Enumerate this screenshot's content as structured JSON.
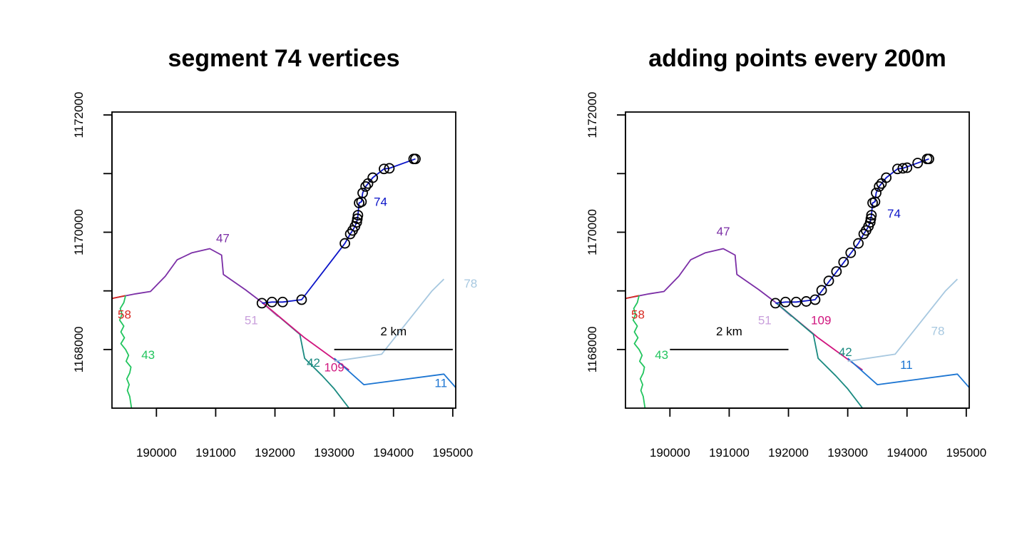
{
  "chart_data": [
    {
      "type": "line",
      "title": "segment 74 vertices",
      "xlabel": "",
      "ylabel": "",
      "xlim": [
        189250,
        195050
      ],
      "ylim": [
        1167000,
        1172050
      ],
      "x_ticks": [
        190000,
        191000,
        192000,
        193000,
        194000,
        195000
      ],
      "x_tick_labels": [
        "190000",
        "191000",
        "192000",
        "193000",
        "194000",
        "195000"
      ],
      "y_ticks": [
        1168000,
        1169000,
        1170000,
        1171000,
        1172000
      ],
      "y_tick_labels": [
        "1168000",
        "",
        "1170000",
        "",
        "1172000"
      ],
      "series": [
        {
          "name": "47",
          "color": "#7b2ea6",
          "label_at": [
            191120,
            1169900
          ],
          "points": [
            [
              189250,
              1168870
            ],
            [
              189650,
              1168950
            ],
            [
              189900,
              1168990
            ],
            [
              190150,
              1169250
            ],
            [
              190350,
              1169530
            ],
            [
              190600,
              1169650
            ],
            [
              190900,
              1169720
            ],
            [
              191100,
              1169610
            ],
            [
              191130,
              1169280
            ],
            [
              191500,
              1169020
            ],
            [
              191800,
              1168790
            ]
          ]
        },
        {
          "name": "58",
          "color": "#d7281f",
          "label_at": [
            189460,
            1168600
          ],
          "points": [
            [
              189250,
              1168870
            ],
            [
              189480,
              1168920
            ]
          ]
        },
        {
          "name": "43",
          "color": "#22c55e",
          "label_at": [
            189860,
            1167910
          ],
          "points": [
            [
              189480,
              1168920
            ],
            [
              189450,
              1168800
            ],
            [
              189390,
              1168700
            ],
            [
              189420,
              1168600
            ],
            [
              189380,
              1168500
            ],
            [
              189450,
              1168400
            ],
            [
              189400,
              1168300
            ],
            [
              189460,
              1168200
            ],
            [
              189400,
              1168100
            ],
            [
              189480,
              1168000
            ],
            [
              189530,
              1167900
            ],
            [
              189490,
              1167800
            ],
            [
              189570,
              1167700
            ],
            [
              189550,
              1167600
            ],
            [
              189500,
              1167500
            ],
            [
              189540,
              1167400
            ],
            [
              189510,
              1167300
            ],
            [
              189550,
              1167200
            ],
            [
              189580,
              1167000
            ]
          ]
        },
        {
          "name": "51",
          "color": "#c9a0dc",
          "label_at": [
            191600,
            1168500
          ],
          "points": [
            [
              191780,
              1168800
            ],
            [
              192050,
              1168560
            ]
          ]
        },
        {
          "name": "42",
          "color": "#1a8a80",
          "label_at": [
            192650,
            1167780
          ],
          "points": [
            [
              191800,
              1168790
            ],
            [
              192300,
              1168360
            ],
            [
              192420,
              1168260
            ],
            [
              192500,
              1167850
            ],
            [
              192800,
              1167550
            ],
            [
              193000,
              1167330
            ],
            [
              193250,
              1167000
            ]
          ]
        },
        {
          "name": "109",
          "color": "#d0157e",
          "label_at": [
            193000,
            1167700
          ],
          "points": [
            [
              191800,
              1168790
            ],
            [
              192500,
              1168200
            ],
            [
              193250,
              1167650
            ]
          ]
        },
        {
          "name": "11",
          "color": "#1c75d2",
          "label_at": [
            194800,
            1167430
          ],
          "points": [
            [
              193000,
              1167850
            ],
            [
              193500,
              1167400
            ],
            [
              194850,
              1167580
            ],
            [
              195050,
              1167350
            ]
          ]
        },
        {
          "name": "78",
          "color": "#a7c8e0",
          "label_at": [
            195300,
            1169130
          ],
          "points": [
            [
              193000,
              1167800
            ],
            [
              193800,
              1167920
            ],
            [
              194650,
              1169000
            ],
            [
              194850,
              1169200
            ]
          ]
        },
        {
          "name": "74",
          "color": "#0b14c8",
          "label_at": [
            193780,
            1170520
          ],
          "points": [
            [
              191780,
              1168790
            ],
            [
              191950,
              1168810
            ],
            [
              192130,
              1168810
            ],
            [
              192450,
              1168850
            ],
            [
              193180,
              1169810
            ],
            [
              193270,
              1169970
            ],
            [
              193310,
              1170030
            ],
            [
              193350,
              1170100
            ],
            [
              193380,
              1170170
            ],
            [
              193390,
              1170230
            ],
            [
              193400,
              1170290
            ],
            [
              193420,
              1170500
            ],
            [
              193460,
              1170520
            ],
            [
              193480,
              1170670
            ],
            [
              193530,
              1170780
            ],
            [
              193570,
              1170830
            ],
            [
              193650,
              1170930
            ],
            [
              193840,
              1171080
            ],
            [
              193930,
              1171090
            ],
            [
              194370,
              1171250
            ]
          ]
        }
      ],
      "markers": {
        "series": "74",
        "shape": "open-circle",
        "points": [
          [
            191780,
            1168790
          ],
          [
            191950,
            1168810
          ],
          [
            192130,
            1168810
          ],
          [
            192450,
            1168850
          ],
          [
            193180,
            1169810
          ],
          [
            193270,
            1169970
          ],
          [
            193310,
            1170030
          ],
          [
            193350,
            1170100
          ],
          [
            193380,
            1170170
          ],
          [
            193390,
            1170230
          ],
          [
            193400,
            1170290
          ],
          [
            193420,
            1170500
          ],
          [
            193460,
            1170520
          ],
          [
            193480,
            1170670
          ],
          [
            193530,
            1170780
          ],
          [
            193570,
            1170830
          ],
          [
            193650,
            1170930
          ],
          [
            193840,
            1171080
          ],
          [
            193930,
            1171090
          ],
          [
            194370,
            1171250
          ],
          [
            194340,
            1171250
          ]
        ]
      },
      "scalebar": {
        "label": "2 km",
        "from": [
          193000,
          1168000
        ],
        "to": [
          195000,
          1168000
        ]
      }
    },
    {
      "type": "line",
      "title": "adding points every 200m",
      "xlabel": "",
      "ylabel": "",
      "xlim": [
        189250,
        195050
      ],
      "ylim": [
        1167000,
        1172050
      ],
      "x_ticks": [
        190000,
        191000,
        192000,
        193000,
        194000,
        195000
      ],
      "x_tick_labels": [
        "190000",
        "191000",
        "192000",
        "193000",
        "194000",
        "195000"
      ],
      "y_ticks": [
        1168000,
        1169000,
        1170000,
        1171000,
        1172000
      ],
      "y_tick_labels": [
        "1168000",
        "",
        "1170000",
        "",
        "1172000"
      ],
      "series": [
        {
          "name": "47",
          "color": "#7b2ea6",
          "label_at": [
            190900,
            1170020
          ],
          "points": [
            [
              189250,
              1168870
            ],
            [
              189650,
              1168950
            ],
            [
              189900,
              1168990
            ],
            [
              190150,
              1169250
            ],
            [
              190350,
              1169530
            ],
            [
              190600,
              1169650
            ],
            [
              190900,
              1169720
            ],
            [
              191100,
              1169610
            ],
            [
              191130,
              1169280
            ],
            [
              191500,
              1169020
            ],
            [
              191800,
              1168790
            ]
          ]
        },
        {
          "name": "58",
          "color": "#d7281f",
          "label_at": [
            189460,
            1168600
          ],
          "points": [
            [
              189250,
              1168870
            ],
            [
              189480,
              1168920
            ]
          ]
        },
        {
          "name": "43",
          "color": "#22c55e",
          "label_at": [
            189860,
            1167910
          ],
          "points": [
            [
              189480,
              1168920
            ],
            [
              189450,
              1168800
            ],
            [
              189390,
              1168700
            ],
            [
              189420,
              1168600
            ],
            [
              189380,
              1168500
            ],
            [
              189450,
              1168400
            ],
            [
              189400,
              1168300
            ],
            [
              189460,
              1168200
            ],
            [
              189400,
              1168100
            ],
            [
              189480,
              1168000
            ],
            [
              189530,
              1167900
            ],
            [
              189490,
              1167800
            ],
            [
              189570,
              1167700
            ],
            [
              189550,
              1167600
            ],
            [
              189500,
              1167500
            ],
            [
              189540,
              1167400
            ],
            [
              189510,
              1167300
            ],
            [
              189550,
              1167200
            ],
            [
              189580,
              1167000
            ]
          ]
        },
        {
          "name": "51",
          "color": "#c9a0dc",
          "label_at": [
            191600,
            1168500
          ],
          "points": [
            [
              191780,
              1168800
            ],
            [
              192050,
              1168560
            ]
          ]
        },
        {
          "name": "109",
          "color": "#d0157e",
          "label_at": [
            192550,
            1168500
          ],
          "points": [
            [
              191800,
              1168790
            ],
            [
              192500,
              1168200
            ],
            [
              193250,
              1167650
            ]
          ]
        },
        {
          "name": "42",
          "color": "#1a8a80",
          "label_at": [
            192960,
            1167960
          ],
          "points": [
            [
              191800,
              1168790
            ],
            [
              192300,
              1168360
            ],
            [
              192420,
              1168260
            ],
            [
              192500,
              1167850
            ],
            [
              192800,
              1167550
            ],
            [
              193000,
              1167330
            ],
            [
              193250,
              1167000
            ]
          ]
        },
        {
          "name": "11",
          "color": "#1c75d2",
          "label_at": [
            193990,
            1167740
          ],
          "points": [
            [
              193000,
              1167850
            ],
            [
              193500,
              1167400
            ],
            [
              194850,
              1167580
            ],
            [
              195050,
              1167350
            ]
          ]
        },
        {
          "name": "78",
          "color": "#a7c8e0",
          "label_at": [
            194520,
            1168320
          ],
          "points": [
            [
              193000,
              1167800
            ],
            [
              193800,
              1167920
            ],
            [
              194650,
              1169000
            ],
            [
              194850,
              1169200
            ]
          ]
        },
        {
          "name": "74",
          "color": "#0b14c8",
          "label_at": [
            193780,
            1170320
          ],
          "points": [
            [
              191780,
              1168790
            ],
            [
              191950,
              1168810
            ],
            [
              192130,
              1168810
            ],
            [
              192450,
              1168850
            ],
            [
              193180,
              1169810
            ],
            [
              193270,
              1169970
            ],
            [
              193310,
              1170030
            ],
            [
              193350,
              1170100
            ],
            [
              193380,
              1170170
            ],
            [
              193390,
              1170230
            ],
            [
              193400,
              1170290
            ],
            [
              193420,
              1170500
            ],
            [
              193460,
              1170520
            ],
            [
              193480,
              1170670
            ],
            [
              193530,
              1170780
            ],
            [
              193570,
              1170830
            ],
            [
              193650,
              1170930
            ],
            [
              193840,
              1171080
            ],
            [
              193930,
              1171090
            ],
            [
              194370,
              1171250
            ]
          ]
        }
      ],
      "markers": {
        "series": "74",
        "shape": "open-circle",
        "points": [
          [
            191780,
            1168790
          ],
          [
            191950,
            1168810
          ],
          [
            192130,
            1168810
          ],
          [
            192300,
            1168820
          ],
          [
            192450,
            1168850
          ],
          [
            192560,
            1169010
          ],
          [
            192680,
            1169170
          ],
          [
            192810,
            1169330
          ],
          [
            192930,
            1169490
          ],
          [
            193050,
            1169650
          ],
          [
            193180,
            1169810
          ],
          [
            193270,
            1169970
          ],
          [
            193310,
            1170030
          ],
          [
            193350,
            1170100
          ],
          [
            193380,
            1170170
          ],
          [
            193390,
            1170230
          ],
          [
            193400,
            1170290
          ],
          [
            193420,
            1170500
          ],
          [
            193460,
            1170520
          ],
          [
            193480,
            1170670
          ],
          [
            193530,
            1170780
          ],
          [
            193570,
            1170830
          ],
          [
            193650,
            1170930
          ],
          [
            193840,
            1171080
          ],
          [
            193930,
            1171090
          ],
          [
            194000,
            1171100
          ],
          [
            194180,
            1171180
          ],
          [
            194370,
            1171250
          ],
          [
            194340,
            1171250
          ]
        ]
      },
      "scalebar": {
        "label": "2 km",
        "from": [
          190000,
          1168000
        ],
        "to": [
          192000,
          1168000
        ]
      }
    }
  ]
}
